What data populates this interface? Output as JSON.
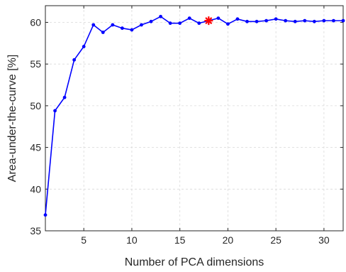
{
  "chart_data": {
    "type": "line",
    "title": "",
    "xlabel": "Number of PCA dimensions",
    "ylabel": "Area-under-the-curve [%]",
    "xlim": [
      1,
      32
    ],
    "ylim": [
      35,
      62
    ],
    "xticks": [
      5,
      10,
      15,
      20,
      25,
      30
    ],
    "yticks": [
      35,
      40,
      45,
      50,
      55,
      60
    ],
    "grid": true,
    "legend": "none",
    "line_color": "#0000ff",
    "highlight_color": "#ff0000",
    "series": [
      {
        "x": [
          1,
          2,
          3,
          4,
          5,
          6,
          7,
          8,
          9,
          10,
          11,
          12,
          13,
          14,
          15,
          16,
          17,
          18,
          19,
          20,
          21,
          22,
          23,
          24,
          25,
          26,
          27,
          28,
          29,
          30,
          31,
          32
        ],
        "values": [
          36.9,
          49.4,
          51.0,
          55.5,
          57.1,
          59.7,
          58.8,
          59.7,
          59.3,
          59.1,
          59.7,
          60.1,
          60.7,
          59.9,
          59.9,
          60.5,
          59.9,
          60.2,
          60.5,
          59.8,
          60.4,
          60.1,
          60.1,
          60.2,
          60.4,
          60.2,
          60.1,
          60.2,
          60.1,
          60.2,
          60.2,
          60.2
        ]
      }
    ],
    "highlight_point": {
      "x": 18,
      "y": 60.2,
      "marker": "asterisk"
    }
  }
}
